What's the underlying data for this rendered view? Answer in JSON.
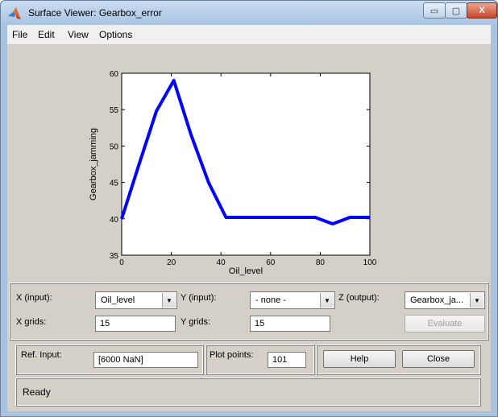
{
  "window": {
    "title": "Surface Viewer: Gearbox_error",
    "minimize_glyph": "▭",
    "maximize_glyph": "▢",
    "close_glyph": "X"
  },
  "menu": {
    "items": [
      {
        "label": "File"
      },
      {
        "label": "Edit"
      },
      {
        "label": "View"
      },
      {
        "label": "Options"
      }
    ]
  },
  "chart_data": {
    "type": "line",
    "xlabel": "Oil_level",
    "ylabel": "Gearbox_jamming",
    "xlim": [
      0,
      100
    ],
    "ylim": [
      35,
      60
    ],
    "xticks": [
      0,
      20,
      40,
      60,
      80,
      100
    ],
    "yticks": [
      35,
      40,
      45,
      50,
      55,
      60
    ],
    "grid": false,
    "series": [
      {
        "color": "#0000ff",
        "x": [
          0,
          7,
          14,
          21,
          28,
          35,
          42,
          50,
          57,
          64,
          71,
          78,
          85,
          92,
          100
        ],
        "y": [
          40,
          47.5,
          54.8,
          59,
          51.5,
          45,
          40.2,
          40.2,
          40.2,
          40.2,
          40.2,
          40.2,
          39.3,
          40.2,
          40.2
        ]
      }
    ]
  },
  "controls": {
    "x_input_label": "X (input):",
    "x_input_value": "Oil_level",
    "y_input_label": "Y (input):",
    "y_input_value": "- none -",
    "z_output_label": "Z (output):",
    "z_output_value": "Gearbox_ja...",
    "x_grids_label": "X grids:",
    "x_grids_value": "15",
    "y_grids_label": "Y grids:",
    "y_grids_value": "15",
    "evaluate_label": "Evaluate",
    "ref_input_label": "Ref. Input:",
    "ref_input_value": "[6000 NaN]",
    "plot_points_label": "Plot points:",
    "plot_points_value": "101",
    "help_label": "Help",
    "close_label": "Close"
  },
  "status": {
    "text": "Ready"
  },
  "icons": {
    "app": "matlab-logo-icon",
    "dropdown": "chevron-down-icon"
  },
  "colors": {
    "series": "#0000ff",
    "panel_bg": "#d4d0c8"
  }
}
